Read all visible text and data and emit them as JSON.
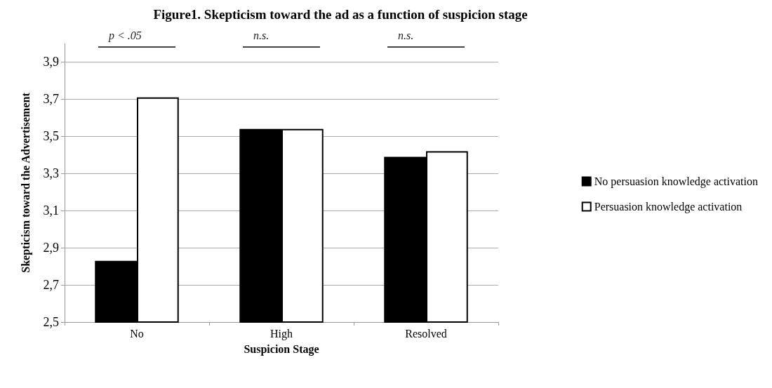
{
  "chart_data": {
    "type": "bar",
    "title": "Figure1. Skepticism toward the ad as a function of suspicion stage",
    "xlabel": "Suspicion Stage",
    "ylabel": "Skepticism toward the Advertisement",
    "categories": [
      "No",
      "High",
      "Resolved"
    ],
    "series": [
      {
        "name": "No persuasion knowledge activation",
        "color": "#000000",
        "values": [
          2.83,
          3.54,
          3.39
        ]
      },
      {
        "name": "Persuasion knowledge activation",
        "color": "#ffffff",
        "values": [
          3.71,
          3.54,
          3.42
        ]
      }
    ],
    "ylim": [
      2.5,
      4.0
    ],
    "yticks": [
      {
        "value": 2.5,
        "label": "2,5"
      },
      {
        "value": 2.7,
        "label": "2,7"
      },
      {
        "value": 2.9,
        "label": "2,9"
      },
      {
        "value": 3.1,
        "label": "3,1"
      },
      {
        "value": 3.3,
        "label": "3,3"
      },
      {
        "value": 3.5,
        "label": "3,5"
      },
      {
        "value": 3.7,
        "label": "3,7"
      },
      {
        "value": 3.9,
        "label": "3,9"
      }
    ],
    "annotations": [
      "p < .05",
      "n.s.",
      "n.s."
    ],
    "grid": "y",
    "legend": "right"
  }
}
